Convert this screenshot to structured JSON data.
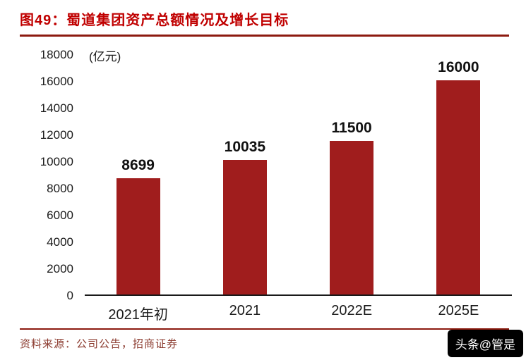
{
  "header": {
    "title": "图49：蜀道集团资产总额情况及增长目标"
  },
  "chart_data": {
    "type": "bar",
    "title": "蜀道集团资产总额情况及增长目标",
    "unit_label": "(亿元)",
    "categories": [
      "2021年初",
      "2021",
      "2022E",
      "2025E"
    ],
    "values": [
      8699,
      10035,
      11500,
      16000
    ],
    "ylim": [
      0,
      18000
    ],
    "ytick_step": 2000,
    "yticks": [
      0,
      2000,
      4000,
      6000,
      8000,
      10000,
      12000,
      14000,
      16000,
      18000
    ],
    "grid": false,
    "legend": "none"
  },
  "footer": {
    "source": "资料来源：公司公告，招商证券"
  },
  "watermark": {
    "text": "头条@管是"
  },
  "colors": {
    "title": "#C00000",
    "rule": "#8C1A0F",
    "bar": "#A01D1D",
    "footer_text": "#8B3A2E",
    "watermark_bg": "#000000",
    "watermark_text": "#FFFFFF"
  }
}
